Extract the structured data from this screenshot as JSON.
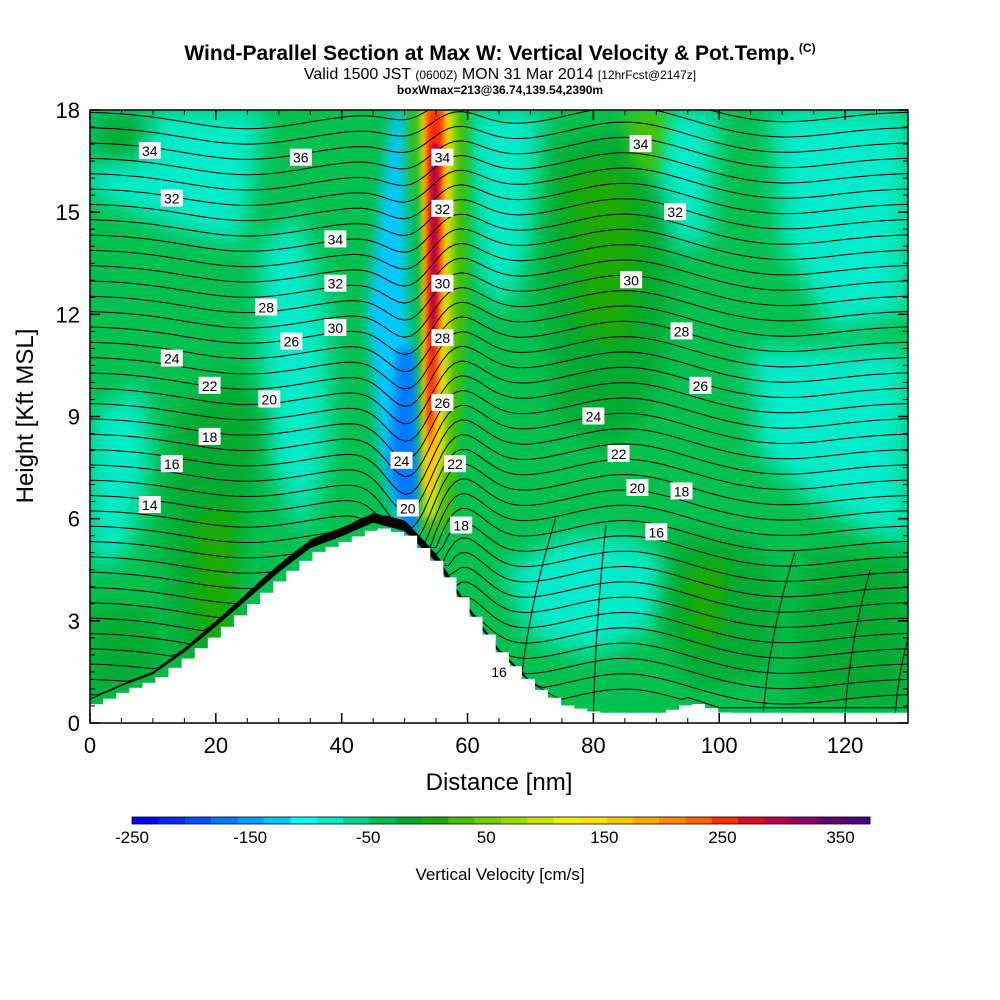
{
  "title": {
    "main": "Wind-Parallel Section at Max W: Vertical Velocity & Pot.Temp.",
    "copyright": "(C)",
    "valid_prefix": "Valid 1500 JST",
    "valid_utc": "(0600Z)",
    "valid_date": "MON 31 Mar 2014",
    "forecast": "[12hrFcst@2147z]",
    "box": "boxWmax=213@36.74,139.54,2390m"
  },
  "chart_data": {
    "type": "heatmap",
    "xlabel": "Distance [nm]",
    "ylabel": "Height [Kft MSL]",
    "xlim": [
      0,
      130
    ],
    "ylim": [
      0,
      18
    ],
    "x_ticks": [
      0,
      20,
      40,
      60,
      80,
      100,
      120
    ],
    "y_ticks": [
      0,
      3,
      6,
      9,
      12,
      15,
      18
    ],
    "colorbar": {
      "label": "Vertical Velocity [cm/s]",
      "range": [
        -250,
        375
      ],
      "step": 25,
      "tick_values": [
        -250,
        -150,
        -50,
        50,
        150,
        250,
        350
      ],
      "tick_labels": [
        "-250",
        "-150",
        "-50",
        "50",
        "150",
        "250",
        "350"
      ],
      "colors": [
        "#0000ff",
        "#0028ff",
        "#0050ff",
        "#0078ff",
        "#00a0ff",
        "#00c8ff",
        "#00ffff",
        "#00ebc8",
        "#00d48c",
        "#00c050",
        "#00aa30",
        "#1fab00",
        "#44c000",
        "#70d000",
        "#9cdc00",
        "#c8e600",
        "#f0f000",
        "#ffe100",
        "#ffc800",
        "#ffaa00",
        "#ff8c00",
        "#ff6400",
        "#ff2d00",
        "#dc0a28",
        "#b4004b",
        "#8c0064",
        "#64006e",
        "#4b0082"
      ]
    },
    "terrain": [
      [
        0,
        0.55
      ],
      [
        5,
        0.95
      ],
      [
        10,
        1.3
      ],
      [
        15,
        1.95
      ],
      [
        20,
        2.7
      ],
      [
        25,
        3.5
      ],
      [
        30,
        4.3
      ],
      [
        35,
        5.0
      ],
      [
        40,
        5.35
      ],
      [
        45,
        5.75
      ],
      [
        50,
        5.5
      ],
      [
        55,
        4.6
      ],
      [
        60,
        3.2
      ],
      [
        65,
        1.95
      ],
      [
        70,
        1.05
      ],
      [
        75,
        0.5
      ],
      [
        80,
        0.3
      ],
      [
        85,
        0.3
      ],
      [
        90,
        0.3
      ],
      [
        95,
        0.6
      ],
      [
        100,
        0.3
      ],
      [
        130,
        0.3
      ]
    ],
    "potential_temperature_label_values": [
      "14",
      "16",
      "18",
      "20",
      "22",
      "24",
      "26",
      "28",
      "30",
      "32",
      "34",
      "36"
    ],
    "isentrope_labels": [
      {
        "text": "34",
        "x": 9.5,
        "y": 16.8
      },
      {
        "text": "36",
        "x": 33.5,
        "y": 16.6
      },
      {
        "text": "32",
        "x": 13,
        "y": 15.4
      },
      {
        "text": "34",
        "x": 39,
        "y": 14.2
      },
      {
        "text": "32",
        "x": 39,
        "y": 12.9
      },
      {
        "text": "28",
        "x": 28,
        "y": 12.2
      },
      {
        "text": "30",
        "x": 39,
        "y": 11.6
      },
      {
        "text": "26",
        "x": 32,
        "y": 11.2
      },
      {
        "text": "24",
        "x": 13,
        "y": 10.7
      },
      {
        "text": "22",
        "x": 19,
        "y": 9.9
      },
      {
        "text": "20",
        "x": 28.5,
        "y": 9.5
      },
      {
        "text": "18",
        "x": 19,
        "y": 8.4
      },
      {
        "text": "16",
        "x": 13,
        "y": 7.6
      },
      {
        "text": "14",
        "x": 9.5,
        "y": 6.4
      },
      {
        "text": "34",
        "x": 56,
        "y": 16.6
      },
      {
        "text": "32",
        "x": 56,
        "y": 15.1
      },
      {
        "text": "30",
        "x": 56,
        "y": 12.9
      },
      {
        "text": "28",
        "x": 56,
        "y": 11.3
      },
      {
        "text": "26",
        "x": 56,
        "y": 9.4
      },
      {
        "text": "24",
        "x": 49.5,
        "y": 7.7
      },
      {
        "text": "22",
        "x": 58,
        "y": 7.6
      },
      {
        "text": "20",
        "x": 50.5,
        "y": 6.3
      },
      {
        "text": "18",
        "x": 59,
        "y": 5.8
      },
      {
        "text": "16",
        "x": 65,
        "y": 1.5
      },
      {
        "text": "34",
        "x": 87.5,
        "y": 17.0
      },
      {
        "text": "32",
        "x": 93,
        "y": 15.0
      },
      {
        "text": "30",
        "x": 86,
        "y": 13.0
      },
      {
        "text": "28",
        "x": 94,
        "y": 11.5
      },
      {
        "text": "26",
        "x": 97,
        "y": 9.9
      },
      {
        "text": "24",
        "x": 80,
        "y": 9.0
      },
      {
        "text": "22",
        "x": 84,
        "y": 7.9
      },
      {
        "text": "20",
        "x": 87,
        "y": 6.9
      },
      {
        "text": "18",
        "x": 94,
        "y": 6.8
      },
      {
        "text": "16",
        "x": 90,
        "y": 5.6
      }
    ]
  }
}
